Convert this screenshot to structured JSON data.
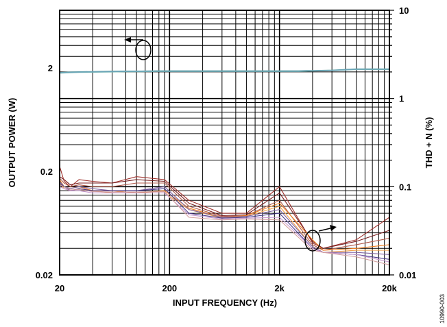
{
  "figure_id": "10990-003",
  "chart_data": {
    "type": "line",
    "title": "",
    "xlabel": "INPUT FREQUENCY (Hz)",
    "ylabel_left": "OUTPUT POWER (W)",
    "ylabel_right": "THD + N (%)",
    "x_scale": "log",
    "y_left_scale": "log",
    "y_right_scale": "log",
    "xlim": [
      20,
      20000
    ],
    "ylim_left": [
      0.02,
      7.2
    ],
    "ylim_right": [
      0.01,
      10
    ],
    "x_ticks": [
      {
        "value": 20,
        "label": "20"
      },
      {
        "value": 200,
        "label": "200"
      },
      {
        "value": 2000,
        "label": "2k"
      },
      {
        "value": 20000,
        "label": "20k"
      }
    ],
    "y_left_ticks": [
      {
        "value": 0.02,
        "label": "0.02"
      },
      {
        "value": 0.2,
        "label": "0.2"
      },
      {
        "value": 2,
        "label": "2"
      }
    ],
    "y_right_ticks": [
      {
        "value": 0.01,
        "label": "0.01"
      },
      {
        "value": 0.1,
        "label": "0.1"
      },
      {
        "value": 1,
        "label": "1"
      },
      {
        "value": 10,
        "label": "10"
      }
    ],
    "grid": true,
    "legend": "none",
    "annotations": [
      "circle-arrow pointing left to output power curves",
      "circle-arrow pointing right to THD + N curves"
    ],
    "x": [
      20,
      25,
      30,
      40,
      60,
      80,
      110,
      150,
      190,
      300,
      600,
      1000,
      1500,
      2000,
      3000,
      3500,
      4000,
      6000,
      10000,
      20000
    ],
    "power_series": [
      {
        "axis": "left",
        "color": "#5f9ea0",
        "values": [
          1.8,
          1.82,
          1.83,
          1.84,
          1.85,
          1.86,
          1.86,
          1.87,
          1.87,
          1.87,
          1.87,
          1.87,
          1.87,
          1.87,
          1.87,
          1.88,
          1.88,
          1.9,
          1.95,
          1.95
        ]
      },
      {
        "axis": "left",
        "color": "#7fbfb0",
        "values": [
          1.78,
          1.8,
          1.81,
          1.82,
          1.83,
          1.84,
          1.84,
          1.85,
          1.85,
          1.85,
          1.85,
          1.85,
          1.85,
          1.85,
          1.85,
          1.86,
          1.87,
          1.89,
          1.93,
          1.93
        ]
      },
      {
        "axis": "left",
        "color": "#6aa5b8",
        "values": [
          1.79,
          1.81,
          1.82,
          1.83,
          1.84,
          1.85,
          1.85,
          1.86,
          1.86,
          1.86,
          1.86,
          1.86,
          1.86,
          1.86,
          1.86,
          1.87,
          1.87,
          1.89,
          1.94,
          1.94
        ]
      }
    ],
    "thd_x": [
      20,
      22,
      25,
      30,
      40,
      60,
      100,
      180,
      300,
      600,
      1000,
      2000,
      4000,
      5000,
      10000,
      20000
    ],
    "thd_series": [
      {
        "axis": "right",
        "color": "#a0322d",
        "values": [
          0.17,
          0.115,
          0.1,
          0.12,
          0.115,
          0.11,
          0.13,
          0.12,
          0.07,
          0.05,
          0.05,
          0.1,
          0.023,
          0.02,
          0.025,
          0.045
        ]
      },
      {
        "axis": "right",
        "color": "#7a1f1f",
        "values": [
          0.13,
          0.12,
          0.105,
          0.11,
          0.11,
          0.11,
          0.12,
          0.115,
          0.065,
          0.047,
          0.048,
          0.085,
          0.024,
          0.02,
          0.024,
          0.032
        ]
      },
      {
        "axis": "right",
        "color": "#b05a4a",
        "values": [
          0.125,
          0.11,
          0.1,
          0.105,
          0.1,
          0.1,
          0.11,
          0.11,
          0.06,
          0.046,
          0.047,
          0.07,
          0.022,
          0.019,
          0.022,
          0.026
        ]
      },
      {
        "axis": "right",
        "color": "#f07f20",
        "values": [
          0.12,
          0.1,
          0.095,
          0.1,
          0.09,
          0.09,
          0.085,
          0.09,
          0.057,
          0.045,
          0.047,
          0.065,
          0.025,
          0.019,
          0.02,
          0.022
        ]
      },
      {
        "axis": "right",
        "color": "#f4a24a",
        "values": [
          0.11,
          0.095,
          0.09,
          0.095,
          0.09,
          0.085,
          0.085,
          0.085,
          0.055,
          0.044,
          0.046,
          0.06,
          0.021,
          0.018,
          0.019,
          0.019
        ]
      },
      {
        "axis": "right",
        "color": "#8064a2",
        "values": [
          0.115,
          0.1,
          0.095,
          0.1,
          0.095,
          0.09,
          0.09,
          0.1,
          0.055,
          0.045,
          0.046,
          0.055,
          0.021,
          0.018,
          0.018,
          0.017
        ]
      },
      {
        "axis": "right",
        "color": "#4b3c8c",
        "values": [
          0.11,
          0.1,
          0.09,
          0.095,
          0.09,
          0.09,
          0.09,
          0.095,
          0.05,
          0.044,
          0.045,
          0.05,
          0.02,
          0.018,
          0.017,
          0.015
        ]
      },
      {
        "axis": "right",
        "color": "#c89ad0",
        "values": [
          0.1,
          0.095,
          0.09,
          0.09,
          0.085,
          0.085,
          0.085,
          0.085,
          0.048,
          0.043,
          0.044,
          0.045,
          0.02,
          0.018,
          0.017,
          0.014
        ]
      },
      {
        "axis": "right",
        "color": "#d4a0a0",
        "values": [
          0.105,
          0.1,
          0.092,
          0.093,
          0.088,
          0.087,
          0.087,
          0.088,
          0.045,
          0.042,
          0.043,
          0.042,
          0.019,
          0.018,
          0.016,
          0.013
        ]
      }
    ]
  }
}
